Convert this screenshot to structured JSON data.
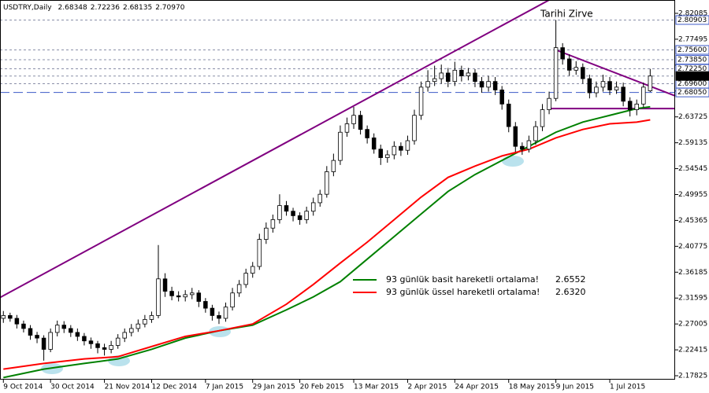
{
  "chart_data": {
    "type": "candlestick",
    "symbol": "USDTRY,Daily",
    "ohlc_labels": [
      "2.68348",
      "2.72236",
      "2.68135",
      "2.70970"
    ],
    "annotation": "Tarihi Zirve",
    "ylim": [
      2.1727,
      2.8445
    ],
    "xlim": [
      -0.5,
      99.7
    ],
    "yticks": [
      2.82085,
      2.77495,
      2.72905,
      2.68315,
      2.63725,
      2.59135,
      2.54545,
      2.49955,
      2.45365,
      2.40775,
      2.36185,
      2.31595,
      2.27005,
      2.22415,
      2.17825
    ],
    "xticks": [
      {
        "value": 0,
        "label": "9 Oct 2014"
      },
      {
        "value": 7,
        "label": "30 Oct 2014"
      },
      {
        "value": 15,
        "label": "21 Nov 2014"
      },
      {
        "value": 22,
        "label": "12 Dec 2014"
      },
      {
        "value": 30,
        "label": "7 Jan 2015"
      },
      {
        "value": 37,
        "label": "29 Jan 2015"
      },
      {
        "value": 44,
        "label": "20 Feb 2015"
      },
      {
        "value": 52,
        "label": "13 Mar 2015"
      },
      {
        "value": 60,
        "label": "2 Apr 2015"
      },
      {
        "value": 67,
        "label": "24 Apr 2015"
      },
      {
        "value": 75,
        "label": "18 May 2015"
      },
      {
        "value": 82,
        "label": "9 Jun 2015"
      },
      {
        "value": 90,
        "label": "1 Jul 2015"
      }
    ],
    "levels": [
      {
        "value": 2.80903,
        "label": "2.80903"
      },
      {
        "value": 2.756,
        "label": "2.75600"
      },
      {
        "value": 2.7385,
        "label": "2.73850"
      },
      {
        "value": 2.7225,
        "label": "2.72250"
      },
      {
        "value": 2.696,
        "label": "2.69600"
      },
      {
        "value": 2.6805,
        "label": "2.68050"
      }
    ],
    "last_price": {
      "value": 2.7097,
      "label": "2.70970"
    },
    "candles": [
      [
        2.28,
        2.293,
        2.272,
        2.285
      ],
      [
        2.285,
        2.29,
        2.274,
        2.28
      ],
      [
        2.28,
        2.286,
        2.262,
        2.27
      ],
      [
        2.27,
        2.276,
        2.255,
        2.262
      ],
      [
        2.262,
        2.268,
        2.242,
        2.25
      ],
      [
        2.25,
        2.256,
        2.236,
        2.245
      ],
      [
        2.245,
        2.25,
        2.205,
        2.225
      ],
      [
        2.225,
        2.262,
        2.22,
        2.255
      ],
      [
        2.255,
        2.276,
        2.248,
        2.268
      ],
      [
        2.268,
        2.275,
        2.254,
        2.262
      ],
      [
        2.262,
        2.268,
        2.247,
        2.255
      ],
      [
        2.255,
        2.262,
        2.24,
        2.248
      ],
      [
        2.248,
        2.254,
        2.232,
        2.24
      ],
      [
        2.24,
        2.246,
        2.226,
        2.235
      ],
      [
        2.235,
        2.24,
        2.218,
        2.228
      ],
      [
        2.228,
        2.235,
        2.214,
        2.225
      ],
      [
        2.225,
        2.24,
        2.218,
        2.232
      ],
      [
        2.232,
        2.252,
        2.226,
        2.245
      ],
      [
        2.245,
        2.262,
        2.238,
        2.255
      ],
      [
        2.255,
        2.27,
        2.248,
        2.262
      ],
      [
        2.262,
        2.278,
        2.256,
        2.27
      ],
      [
        2.27,
        2.286,
        2.264,
        2.278
      ],
      [
        2.278,
        2.292,
        2.272,
        2.285
      ],
      [
        2.285,
        2.41,
        2.28,
        2.35
      ],
      [
        2.35,
        2.36,
        2.318,
        2.328
      ],
      [
        2.328,
        2.336,
        2.312,
        2.32
      ],
      [
        2.32,
        2.328,
        2.31,
        2.318
      ],
      [
        2.318,
        2.33,
        2.31,
        2.322
      ],
      [
        2.322,
        2.334,
        2.314,
        2.325
      ],
      [
        2.325,
        2.33,
        2.3,
        2.31
      ],
      [
        2.31,
        2.316,
        2.29,
        2.298
      ],
      [
        2.298,
        2.304,
        2.276,
        2.285
      ],
      [
        2.285,
        2.292,
        2.27,
        2.28
      ],
      [
        2.28,
        2.308,
        2.274,
        2.3
      ],
      [
        2.3,
        2.334,
        2.294,
        2.325
      ],
      [
        2.325,
        2.348,
        2.318,
        2.34
      ],
      [
        2.34,
        2.368,
        2.334,
        2.36
      ],
      [
        2.36,
        2.38,
        2.352,
        2.372
      ],
      [
        2.372,
        2.43,
        2.366,
        2.42
      ],
      [
        2.42,
        2.45,
        2.412,
        2.44
      ],
      [
        2.44,
        2.464,
        2.432,
        2.455
      ],
      [
        2.455,
        2.5,
        2.448,
        2.48
      ],
      [
        2.48,
        2.488,
        2.462,
        2.47
      ],
      [
        2.47,
        2.476,
        2.452,
        2.462
      ],
      [
        2.462,
        2.468,
        2.446,
        2.455
      ],
      [
        2.455,
        2.478,
        2.448,
        2.47
      ],
      [
        2.47,
        2.494,
        2.462,
        2.485
      ],
      [
        2.485,
        2.508,
        2.478,
        2.5
      ],
      [
        2.5,
        2.55,
        2.494,
        2.54
      ],
      [
        2.54,
        2.572,
        2.532,
        2.56
      ],
      [
        2.56,
        2.622,
        2.552,
        2.61
      ],
      [
        2.61,
        2.636,
        2.602,
        2.625
      ],
      [
        2.625,
        2.655,
        2.616,
        2.64
      ],
      [
        2.64,
        2.648,
        2.606,
        2.615
      ],
      [
        2.615,
        2.622,
        2.59,
        2.6
      ],
      [
        2.6,
        2.608,
        2.572,
        2.58
      ],
      [
        2.58,
        2.588,
        2.552,
        2.565
      ],
      [
        2.565,
        2.578,
        2.556,
        2.57
      ],
      [
        2.57,
        2.594,
        2.562,
        2.585
      ],
      [
        2.585,
        2.592,
        2.568,
        2.578
      ],
      [
        2.578,
        2.604,
        2.57,
        2.595
      ],
      [
        2.595,
        2.65,
        2.588,
        2.64
      ],
      [
        2.64,
        2.7,
        2.632,
        2.69
      ],
      [
        2.69,
        2.72,
        2.682,
        2.7
      ],
      [
        2.7,
        2.728,
        2.692,
        2.705
      ],
      [
        2.705,
        2.73,
        2.696,
        2.715
      ],
      [
        2.715,
        2.724,
        2.69,
        2.7
      ],
      [
        2.7,
        2.735,
        2.692,
        2.72
      ],
      [
        2.72,
        2.728,
        2.7,
        2.71
      ],
      [
        2.71,
        2.724,
        2.702,
        2.715
      ],
      [
        2.715,
        2.722,
        2.69,
        2.7
      ],
      [
        2.7,
        2.708,
        2.68,
        2.69
      ],
      [
        2.69,
        2.71,
        2.682,
        2.7
      ],
      [
        2.7,
        2.708,
        2.676,
        2.685
      ],
      [
        2.685,
        2.692,
        2.65,
        2.66
      ],
      [
        2.66,
        2.668,
        2.61,
        2.62
      ],
      [
        2.62,
        2.628,
        2.575,
        2.585
      ],
      [
        2.585,
        2.592,
        2.57,
        2.58
      ],
      [
        2.58,
        2.604,
        2.574,
        2.595
      ],
      [
        2.595,
        2.63,
        2.588,
        2.62
      ],
      [
        2.62,
        2.66,
        2.612,
        2.65
      ],
      [
        2.65,
        2.682,
        2.642,
        2.67
      ],
      [
        2.67,
        2.80903,
        2.665,
        2.76
      ],
      [
        2.76,
        2.768,
        2.73,
        2.74
      ],
      [
        2.74,
        2.748,
        2.71,
        2.72
      ],
      [
        2.72,
        2.736,
        2.712,
        2.725
      ],
      [
        2.725,
        2.732,
        2.696,
        2.705
      ],
      [
        2.705,
        2.712,
        2.67,
        2.68
      ],
      [
        2.68,
        2.7,
        2.672,
        2.69
      ],
      [
        2.69,
        2.712,
        2.682,
        2.7
      ],
      [
        2.7,
        2.708,
        2.676,
        2.685
      ],
      [
        2.685,
        2.7,
        2.678,
        2.69
      ],
      [
        2.69,
        2.698,
        2.656,
        2.665
      ],
      [
        2.665,
        2.672,
        2.638,
        2.65
      ],
      [
        2.65,
        2.668,
        2.64,
        2.66
      ],
      [
        2.66,
        2.698,
        2.654,
        2.69
      ],
      [
        2.68348,
        2.72236,
        2.68135,
        2.7097
      ]
    ],
    "series": [
      {
        "name": "93 günlük basit hareketli ortalama!",
        "color": "#008000",
        "x": [
          0,
          6,
          12,
          17,
          22,
          27,
          32,
          37,
          42,
          46,
          50,
          54,
          58,
          62,
          66,
          70,
          74,
          78,
          82,
          86,
          90,
          94,
          96
        ],
        "values": [
          2.175,
          2.19,
          2.2,
          2.208,
          2.225,
          2.245,
          2.258,
          2.268,
          2.295,
          2.318,
          2.345,
          2.385,
          2.425,
          2.465,
          2.505,
          2.535,
          2.56,
          2.585,
          2.61,
          2.628,
          2.64,
          2.652,
          2.6552
        ],
        "value_labels": [
          null,
          null,
          null,
          null,
          null,
          null,
          null,
          null,
          null,
          null,
          null,
          null,
          null,
          null,
          null,
          null,
          null,
          null,
          null,
          null,
          null,
          null,
          "2.6552"
        ]
      },
      {
        "name": "93 günlük üssel hareketli ortalama!",
        "color": "#ff0000",
        "x": [
          0,
          6,
          12,
          17,
          22,
          27,
          32,
          37,
          42,
          46,
          50,
          54,
          58,
          62,
          66,
          70,
          74,
          78,
          82,
          86,
          90,
          94,
          96
        ],
        "values": [
          2.19,
          2.2,
          2.208,
          2.212,
          2.23,
          2.248,
          2.258,
          2.27,
          2.305,
          2.34,
          2.378,
          2.415,
          2.455,
          2.495,
          2.53,
          2.55,
          2.568,
          2.58,
          2.6,
          2.615,
          2.625,
          2.628,
          2.632
        ],
        "value_labels": [
          null,
          null,
          null,
          null,
          null,
          null,
          null,
          null,
          null,
          null,
          null,
          null,
          null,
          null,
          null,
          null,
          null,
          null,
          null,
          null,
          null,
          null,
          "2.6320"
        ]
      }
    ],
    "trendlines": [
      {
        "color": "#800080",
        "x": [
          -0.5,
          81
        ],
        "y": [
          2.317,
          2.8445
        ]
      },
      {
        "color": "#800080",
        "x": [
          82,
          99.7
        ],
        "y": [
          2.756,
          2.6745
        ]
      },
      {
        "color": "#800080",
        "x": [
          81,
          99.7
        ],
        "y": [
          2.652,
          2.652
        ]
      }
    ]
  }
}
